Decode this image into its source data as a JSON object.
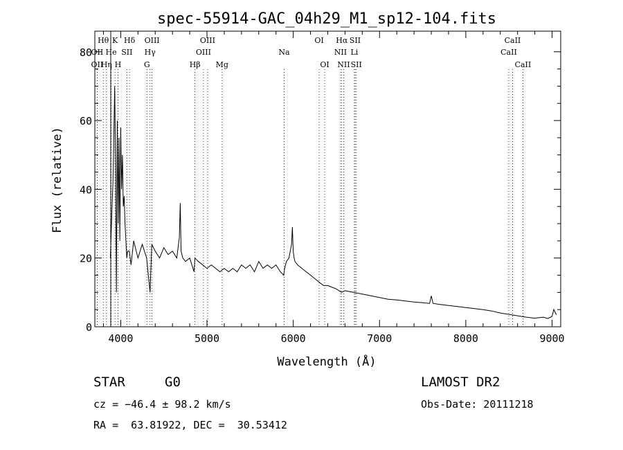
{
  "chart_data": {
    "type": "line",
    "title": "spec-55914-GAC_04h29_M1_sp12-104.fits",
    "xlabel": "Wavelength (Å)",
    "ylabel": "Flux (relative)",
    "xlim": [
      3700,
      9100
    ],
    "ylim": [
      0,
      86
    ],
    "xticks": [
      4000,
      5000,
      6000,
      7000,
      8000,
      9000
    ],
    "xtick_labels": [
      "4000",
      "5000",
      "6000",
      "7000",
      "8000",
      "9000"
    ],
    "yticks": [
      0,
      20,
      40,
      60,
      80
    ],
    "ytick_labels": [
      "0",
      "20",
      "40",
      "60",
      "80"
    ],
    "grid": false,
    "series": [
      {
        "x": [
          3880,
          3900,
          3910,
          3920,
          3930,
          3940,
          3950,
          3960,
          3970,
          3980,
          3990,
          4000,
          4010,
          4020,
          4030,
          4040,
          4050,
          4060,
          4070,
          4080,
          4100,
          4120,
          4150,
          4200,
          4250,
          4300,
          4340,
          4360,
          4400,
          4450,
          4500,
          4550,
          4600,
          4650,
          4680,
          4690,
          4700,
          4720,
          4750,
          4800,
          4850,
          4860,
          4900,
          4950,
          5000,
          5050,
          5100,
          5150,
          5200,
          5250,
          5300,
          5350,
          5400,
          5450,
          5500,
          5550,
          5600,
          5650,
          5700,
          5750,
          5800,
          5850,
          5890,
          5900,
          5920,
          5950,
          5980,
          5990,
          6000,
          6010,
          6020,
          6050,
          6100,
          6150,
          6200,
          6250,
          6300,
          6350,
          6400,
          6450,
          6500,
          6560,
          6600,
          6700,
          6800,
          6900,
          7000,
          7100,
          7200,
          7300,
          7400,
          7500,
          7580,
          7600,
          7620,
          7700,
          7800,
          7900,
          8000,
          8100,
          8200,
          8300,
          8400,
          8500,
          8600,
          8700,
          8800,
          8900,
          8950,
          9000,
          9020,
          9050
        ],
        "y": [
          20,
          35,
          42,
          55,
          70,
          48,
          10,
          60,
          30,
          55,
          25,
          58,
          40,
          50,
          35,
          38,
          30,
          25,
          20,
          22,
          22,
          18,
          25,
          20,
          24,
          20,
          10,
          24,
          22,
          20,
          23,
          21,
          22,
          20,
          26,
          36,
          22,
          20,
          19,
          20,
          16,
          20,
          19,
          18,
          17,
          18,
          17,
          16,
          17,
          16,
          17,
          16,
          18,
          17,
          18,
          16,
          19,
          17,
          18,
          17,
          18,
          16,
          15,
          17,
          19,
          20,
          24,
          29,
          22,
          20,
          19,
          18,
          17,
          16,
          15,
          14,
          13,
          12,
          12,
          11.5,
          11,
          10,
          10.5,
          10,
          9.5,
          9,
          8.5,
          8,
          7.8,
          7.5,
          7.2,
          7,
          6.8,
          9,
          6.8,
          6.5,
          6.2,
          5.9,
          5.6,
          5.3,
          5,
          4.6,
          4,
          3.6,
          3.2,
          2.8,
          2.5,
          2.8,
          2.4,
          3,
          5,
          3.5
        ]
      }
    ],
    "line_markers": [
      {
        "label": "Hθ",
        "x": 3798,
        "row": 1
      },
      {
        "label": "OII",
        "x": 3727,
        "row": 2
      },
      {
        "label": "OII",
        "x": 3727,
        "row": 3
      },
      {
        "label": "He",
        "x": 3889,
        "row": 2
      },
      {
        "label": "Hη",
        "x": 3835,
        "row": 3
      },
      {
        "label": "K",
        "x": 3934,
        "row": 1
      },
      {
        "label": "H",
        "x": 3968,
        "row": 3
      },
      {
        "label": "SII",
        "x": 4072,
        "row": 2
      },
      {
        "label": "Hδ",
        "x": 4102,
        "row": 1
      },
      {
        "label": "OIII",
        "x": 4363,
        "row": 1
      },
      {
        "label": "Hγ",
        "x": 4340,
        "row": 2
      },
      {
        "label": "G",
        "x": 4304,
        "row": 3
      },
      {
        "label": "Hβ",
        "x": 4861,
        "row": 3
      },
      {
        "label": "OIII",
        "x": 4959,
        "row": 2
      },
      {
        "label": "OIII",
        "x": 5007,
        "row": 1
      },
      {
        "label": "Mg",
        "x": 5175,
        "row": 3
      },
      {
        "label": "Na",
        "x": 5894,
        "row": 2
      },
      {
        "label": "OI",
        "x": 6300,
        "row": 1
      },
      {
        "label": "OI",
        "x": 6364,
        "row": 3
      },
      {
        "label": "Hα",
        "x": 6563,
        "row": 1
      },
      {
        "label": "NII",
        "x": 6548,
        "row": 2
      },
      {
        "label": "NII",
        "x": 6584,
        "row": 3
      },
      {
        "label": "SII",
        "x": 6717,
        "row": 1
      },
      {
        "label": "Li",
        "x": 6708,
        "row": 2
      },
      {
        "label": "SII",
        "x": 6731,
        "row": 3
      },
      {
        "label": "CaII",
        "x": 8542,
        "row": 1
      },
      {
        "label": "CaII",
        "x": 8498,
        "row": 2
      },
      {
        "label": "CaII",
        "x": 8662,
        "row": 3
      }
    ]
  },
  "info": {
    "object_class": "STAR",
    "subclass": "G0",
    "survey": "LAMOST DR2",
    "redshift": "cz = −46.4 ± 98.2 km/s",
    "obs_date": "Obs-Date: 20111218",
    "coords": "RA =  63.81922, DEC =  30.53412"
  }
}
